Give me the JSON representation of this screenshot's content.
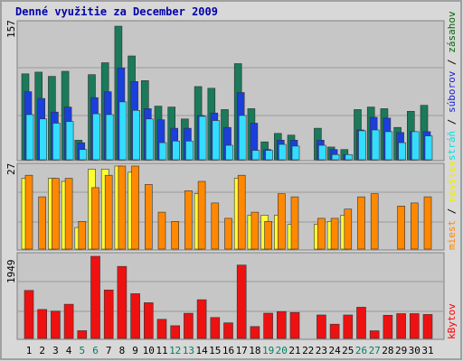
{
  "chart_data": {
    "type": "bar",
    "title": "Denné využitie za December 2009",
    "categories": [
      "1",
      "2",
      "3",
      "4",
      "5",
      "6",
      "7",
      "8",
      "9",
      "10",
      "11",
      "12",
      "13",
      "14",
      "15",
      "16",
      "17",
      "18",
      "19",
      "20",
      "21",
      "22",
      "23",
      "24",
      "25",
      "26",
      "27",
      "28",
      "29",
      "30",
      "31"
    ],
    "weekend_days": [
      "5",
      "6",
      "12",
      "13",
      "19",
      "20",
      "26",
      "27"
    ],
    "panels": [
      {
        "id": "top",
        "ymax_label": "157",
        "ylim": [
          0,
          157
        ],
        "legend": [
          {
            "text": "stráň",
            "color": "#00e0e0"
          },
          {
            "text": " / ",
            "color": "#000000"
          },
          {
            "text": "súborov",
            "color": "#2020d0"
          },
          {
            "text": " / ",
            "color": "#000000"
          },
          {
            "text": "zásahov",
            "color": "#006600"
          }
        ],
        "series": [
          {
            "name": "zásahov",
            "color": "#1a7a5a",
            "values": [
              101,
              103,
              98,
              104,
              23,
              100,
              114,
              157,
              122,
              93,
              63,
              62,
              48,
              86,
              84,
              59,
              113,
              60,
              21,
              31,
              29,
              null,
              37,
              15,
              12,
              59,
              62,
              60,
              38,
              57,
              64
            ]
          },
          {
            "name": "súborov",
            "color": "#1a3fdd",
            "values": [
              80,
              72,
              56,
              62,
              20,
              73,
              80,
              108,
              92,
              60,
              47,
              37,
              37,
              52,
              55,
              38,
              79,
              43,
              12,
              23,
              23,
              null,
              23,
              12,
              6,
              35,
              50,
              49,
              32,
              33,
              33
            ]
          },
          {
            "name": "stráň",
            "color": "#33ddff",
            "values": [
              53,
              48,
              43,
              45,
              12,
              54,
              53,
              68,
              58,
              48,
              20,
              22,
              22,
              51,
              46,
              17,
              52,
              11,
              11,
              18,
              16,
              null,
              17,
              6,
              6,
              34,
              35,
              33,
              20,
              33,
              28
            ]
          }
        ]
      },
      {
        "id": "middle",
        "ymax_label": "27",
        "ylim": [
          0,
          27
        ],
        "legend": [
          {
            "text": "miest",
            "color": "#ff8800"
          },
          {
            "text": " / ",
            "color": "#000000"
          },
          {
            "text": "návštev",
            "color": "#eeee00"
          }
        ],
        "series": [
          {
            "name": "návštev",
            "color": "#ffff33",
            "values": [
              23,
              null,
              23,
              22,
              7,
              26,
              26,
              27,
              25,
              null,
              null,
              null,
              null,
              18,
              null,
              null,
              23,
              11,
              11,
              11,
              8,
              null,
              8,
              9,
              11,
              null,
              null,
              null,
              null,
              null,
              null
            ]
          },
          {
            "name": "miest",
            "color": "#ff8800",
            "values": [
              24,
              17,
              23,
              23,
              9,
              20,
              24,
              27,
              27,
              21,
              12,
              9,
              19,
              22,
              15,
              10,
              24,
              12,
              9,
              18,
              17,
              null,
              10,
              10,
              13,
              17,
              18,
              null,
              14,
              15,
              17
            ]
          }
        ]
      },
      {
        "id": "bottom",
        "ymax_label": "1949",
        "ylim": [
          0,
          1949
        ],
        "legend": [
          {
            "text": "kBytov",
            "color": "#ff0000"
          }
        ],
        "series": [
          {
            "name": "kBytov",
            "color": "#ee1111",
            "values": [
              1139,
              687,
              648,
              812,
              184,
              1949,
              1151,
              1709,
              1062,
              849,
              453,
              303,
              597,
              918,
              497,
              371,
              1741,
              283,
              599,
              638,
              617,
              null,
              556,
              339,
              556,
              742,
              183,
              551,
              589,
              589,
              570
            ]
          }
        ]
      }
    ]
  }
}
